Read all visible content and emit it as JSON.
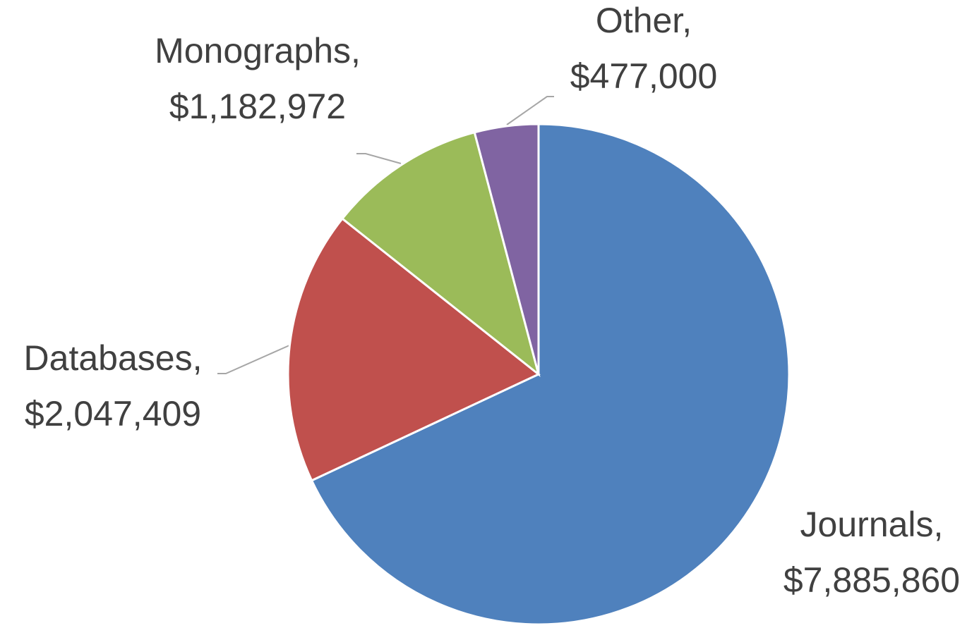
{
  "chart_data": {
    "type": "pie",
    "categories": [
      "Journals,",
      "Databases,",
      "Monographs,",
      "Other,"
    ],
    "values": [
      7885860,
      2047409,
      1182972,
      477000
    ],
    "value_labels": [
      "$7,885,860",
      "$2,047,409",
      "$1,182,972",
      "$477,000"
    ],
    "colors": [
      "#4f81bd",
      "#c0504d",
      "#9bbb59",
      "#8064a2"
    ]
  }
}
